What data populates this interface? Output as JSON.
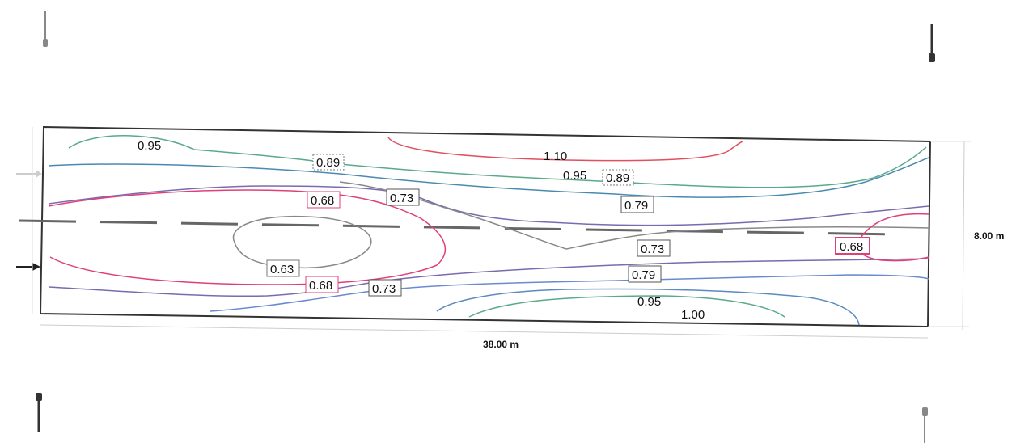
{
  "dimensions": {
    "length": "38.00 m",
    "width": "8.00 m"
  },
  "contour_labels": [
    {
      "id": "095-top",
      "text": "0.95",
      "color": "#8aa84a"
    },
    {
      "id": "089-left",
      "text": "0.89",
      "color": "#222222"
    },
    {
      "id": "110",
      "text": "1.10",
      "color": "#222222"
    },
    {
      "id": "095-mid",
      "text": "0.95",
      "color": "#222222"
    },
    {
      "id": "089-right",
      "text": "0.89",
      "color": "#222222"
    },
    {
      "id": "068-left",
      "text": "0.68",
      "color": "#d0407a"
    },
    {
      "id": "073-upper",
      "text": "0.73",
      "color": "#222222"
    },
    {
      "id": "079-upper",
      "text": "0.79",
      "color": "#3a5a9a"
    },
    {
      "id": "073-right",
      "text": "0.73",
      "color": "#222222"
    },
    {
      "id": "068-right",
      "text": "0.68",
      "color": "#d0407a"
    },
    {
      "id": "063",
      "text": "0.63",
      "color": "#888888"
    },
    {
      "id": "068-lower",
      "text": "0.68",
      "color": "#d0407a"
    },
    {
      "id": "073-lower",
      "text": "0.73",
      "color": "#3a3a8a"
    },
    {
      "id": "079-lower",
      "text": "0.79",
      "color": "#3a5a9a"
    },
    {
      "id": "095-bottom",
      "text": "0.95",
      "color": "#222222"
    },
    {
      "id": "100",
      "text": "1.00",
      "color": "#222222"
    }
  ],
  "colors": {
    "c063": "#888888",
    "c068": "#e0407a",
    "c073": "#7a6ab0",
    "c079": "#6a8ad0",
    "c089": "#4a8ab0",
    "c095": "#5aaa8a",
    "c100": "#d0d070",
    "c110": "#e05060",
    "border": "#333333"
  },
  "icons": [
    "luminaire-icon",
    "arrow-icon"
  ]
}
